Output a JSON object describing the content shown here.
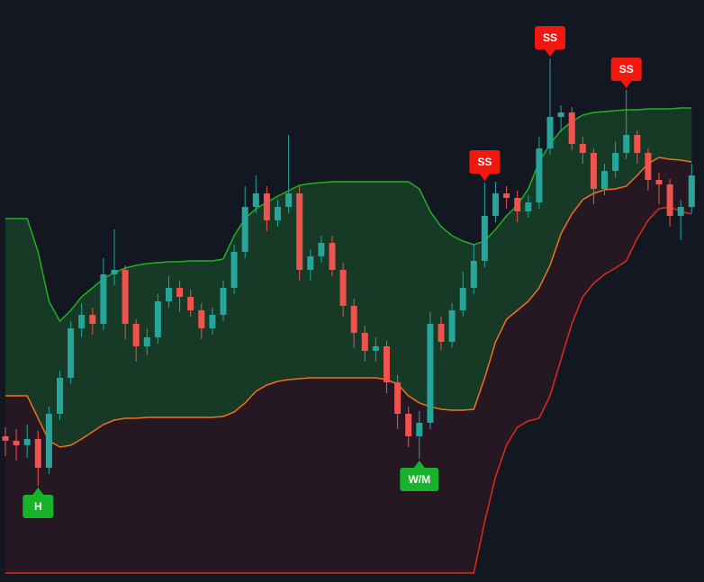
{
  "chart_data": {
    "type": "candlestick",
    "ylim": [
      0,
      647
    ],
    "up_color": "#26a69a",
    "down_color": "#ef5350",
    "open": [
      162,
      157,
      152,
      159,
      127,
      187,
      227,
      282,
      297,
      287,
      342,
      347,
      287,
      262,
      272,
      312,
      327,
      317,
      302,
      282,
      297,
      327,
      367,
      417,
      432,
      402,
      417,
      432,
      347,
      362,
      377,
      347,
      307,
      277,
      257,
      262,
      222,
      187,
      162,
      177,
      287,
      267,
      302,
      327,
      357,
      407,
      432,
      427,
      412,
      422,
      482,
      517,
      522,
      487,
      477,
      437,
      457,
      477,
      497,
      477,
      447,
      442,
      407,
      417
    ],
    "high": [
      172,
      170,
      175,
      168,
      195,
      235,
      290,
      310,
      305,
      360,
      392,
      352,
      292,
      282,
      320,
      340,
      335,
      325,
      310,
      305,
      335,
      375,
      440,
      452,
      440,
      425,
      497,
      440,
      370,
      385,
      385,
      355,
      315,
      285,
      272,
      268,
      230,
      195,
      190,
      300,
      295,
      310,
      345,
      375,
      444,
      445,
      440,
      435,
      430,
      495,
      582,
      530,
      528,
      495,
      482,
      465,
      490,
      547,
      502,
      482,
      455,
      448,
      425,
      465
    ],
    "low": [
      140,
      135,
      138,
      107,
      120,
      180,
      220,
      272,
      275,
      280,
      330,
      270,
      245,
      252,
      265,
      305,
      300,
      295,
      270,
      275,
      290,
      320,
      360,
      410,
      390,
      395,
      410,
      335,
      335,
      355,
      340,
      295,
      260,
      245,
      245,
      210,
      170,
      150,
      137,
      170,
      258,
      260,
      295,
      320,
      350,
      400,
      415,
      400,
      405,
      415,
      475,
      500,
      480,
      465,
      420,
      430,
      450,
      470,
      465,
      435,
      420,
      395,
      380,
      410
    ],
    "close": [
      157,
      152,
      159,
      127,
      187,
      227,
      282,
      297,
      287,
      342,
      347,
      287,
      262,
      272,
      312,
      327,
      317,
      302,
      282,
      297,
      327,
      367,
      417,
      432,
      402,
      417,
      432,
      347,
      362,
      377,
      347,
      307,
      277,
      257,
      262,
      222,
      187,
      162,
      177,
      287,
      267,
      302,
      327,
      357,
      407,
      432,
      427,
      412,
      422,
      482,
      517,
      522,
      487,
      477,
      437,
      457,
      477,
      497,
      477,
      447,
      442,
      407,
      417,
      452
    ],
    "bands": [
      {
        "color": "#22b022",
        "fill": "rgba(34,140,50,0.30)",
        "values": [
          404,
          404,
          404,
          367,
          312,
          290,
          302,
          317,
          327,
          337,
          344,
          349,
          352,
          354,
          355,
          356,
          356,
          357,
          357,
          357,
          359,
          385,
          404,
          415,
          422,
          429,
          435,
          441,
          443,
          444,
          445,
          445,
          445,
          445,
          445,
          445,
          445,
          445,
          437,
          412,
          395,
          385,
          379,
          375,
          379,
          392,
          407,
          419,
          437,
          467,
          487,
          502,
          512,
          519,
          522,
          523,
          524,
          525,
          525,
          526,
          526,
          526,
          527,
          527
        ]
      },
      {
        "color": "#f07020",
        "fill": "rgba(110,30,35,0.22)",
        "values": [
          207,
          207,
          207,
          182,
          157,
          150,
          152,
          159,
          167,
          175,
          180,
          182,
          182,
          183,
          183,
          183,
          183,
          183,
          183,
          183,
          184,
          189,
          199,
          212,
          219,
          223,
          225,
          226,
          227,
          227,
          227,
          227,
          227,
          227,
          227,
          225,
          220,
          207,
          199,
          195,
          192,
          191,
          191,
          192,
          227,
          267,
          292,
          302,
          312,
          327,
          352,
          387,
          409,
          425,
          432,
          436,
          437,
          440,
          452,
          465,
          472,
          470,
          469,
          467
        ]
      },
      {
        "color": "#e02a1a",
        "values": [
          10,
          10,
          10,
          10,
          10,
          10,
          10,
          10,
          10,
          10,
          10,
          10,
          10,
          10,
          10,
          10,
          10,
          10,
          10,
          10,
          10,
          10,
          10,
          10,
          10,
          10,
          10,
          10,
          10,
          10,
          10,
          10,
          10,
          10,
          10,
          10,
          10,
          10,
          10,
          10,
          10,
          10,
          10,
          10,
          67,
          117,
          152,
          172,
          179,
          182,
          207,
          247,
          287,
          317,
          332,
          342,
          349,
          357,
          382,
          402,
          415,
          417,
          412,
          409
        ]
      }
    ],
    "signals": [
      null,
      null,
      null,
      "H",
      null,
      null,
      null,
      null,
      null,
      null,
      null,
      null,
      null,
      null,
      null,
      null,
      null,
      null,
      null,
      null,
      null,
      null,
      null,
      null,
      null,
      null,
      null,
      null,
      null,
      null,
      null,
      null,
      null,
      null,
      null,
      null,
      null,
      null,
      "W/M",
      null,
      null,
      null,
      null,
      null,
      "SS",
      null,
      null,
      null,
      null,
      null,
      "SS",
      null,
      null,
      null,
      null,
      null,
      null,
      "SS",
      null,
      null,
      null,
      null,
      null,
      null
    ],
    "signal_colors": {
      "H": "#18b32a",
      "W/M": "#18b32a",
      "SS": "#f0190f"
    }
  }
}
